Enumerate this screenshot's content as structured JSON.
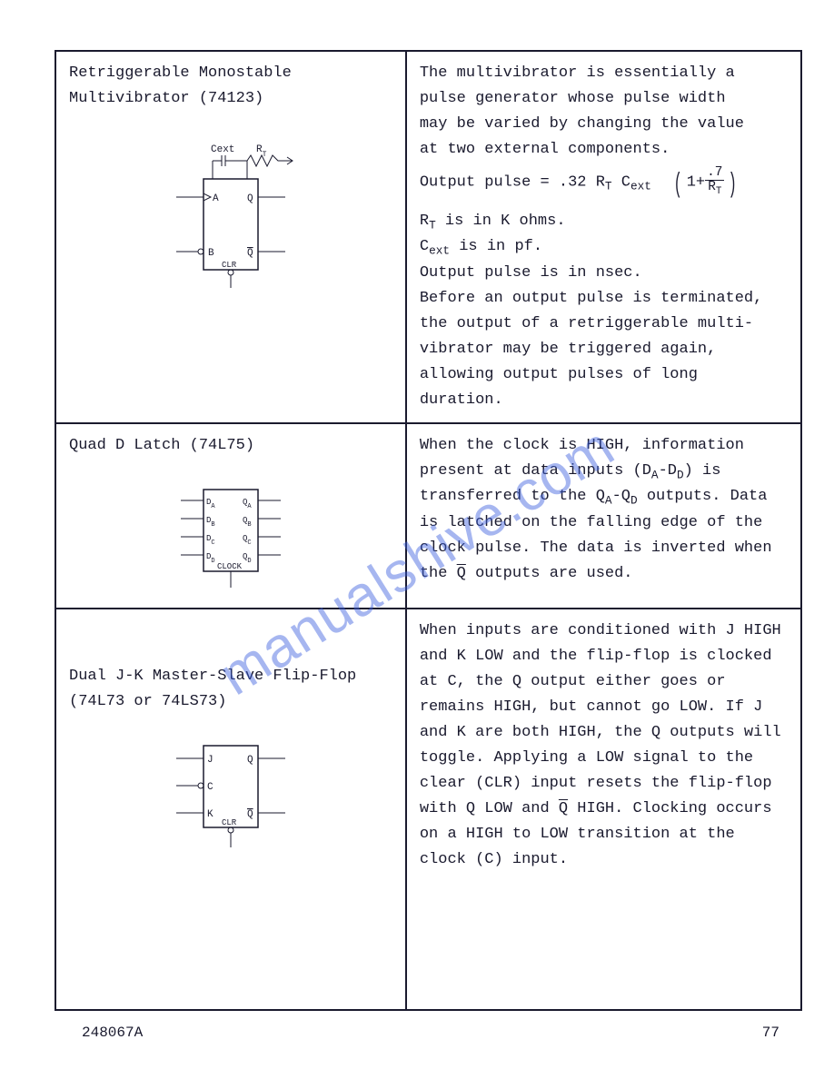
{
  "page": {
    "document_number": "248067A",
    "page_number": "77",
    "watermark_text": "manualshive.com",
    "border_color": "#1a1a2e",
    "text_color": "#1a1a2e",
    "background_color": "#ffffff",
    "font_family": "Courier New"
  },
  "rows": [
    {
      "title": "Retriggerable Monostable Multivibrator (74123)",
      "diagram": {
        "type": "ic_block",
        "labels": {
          "top_left": "Cext",
          "top_right": "R_T",
          "in_a": "A",
          "in_b": "B",
          "out_q": "Q",
          "out_qbar": "Q̄",
          "clr": "CLR"
        }
      },
      "description": {
        "lines": [
          "The multivibrator is essentially a",
          "pulse generator whose pulse width",
          "may be varied by changing the value",
          "at two external components."
        ],
        "formula": {
          "prefix": "Output pulse = .32 R",
          "sub1": "T",
          "mid": " C",
          "sub2": "ext",
          "frac_num": ".7",
          "frac_den_prefix": "R",
          "frac_den_sub": "T"
        },
        "lines2": [
          {
            "text": "R",
            "sub": "T",
            "rest": " is in K ohms."
          },
          {
            "text": "C",
            "sub": "ext",
            "rest": " is in pf."
          }
        ],
        "lines3": [
          "Output pulse is in nsec.",
          "Before an output pulse is terminated,",
          "the output of a retriggerable multi-",
          "vibrator may be triggered again,",
          "allowing output pulses of long",
          "duration."
        ]
      }
    },
    {
      "title": "Quad D Latch (74L75)",
      "diagram": {
        "type": "ic_block",
        "labels": {
          "d": [
            "D_A",
            "D_B",
            "D_C",
            "D_D"
          ],
          "q": [
            "Q_A",
            "Q_B",
            "Q_C",
            "Q_D"
          ],
          "clock": "CLOCK"
        }
      },
      "description_html": "When the clock is HIGH, information present at data inputs (D<sub>A</sub>-D<sub>D</sub>) is transferred to the Q<sub>A</sub>-Q<sub>D</sub> outputs. Data is latched on the falling edge of the clock pulse.  The data is inverted when the <ovl>Q</ovl> outputs are used."
    },
    {
      "title": "Dual J-K Master-Slave Flip-Flop (74L73 or 74LS73)",
      "diagram": {
        "type": "ic_block",
        "labels": {
          "j": "J",
          "c": "C",
          "k": "K",
          "q": "Q",
          "qbar": "Q̄",
          "clr": "CLR"
        }
      },
      "description_html": "When inputs are conditioned with J HIGH and K LOW and the flip-flop is clocked at C, the Q output either goes or remains HIGH, but cannot go LOW.  If J and K are both HIGH, the Q outputs will toggle. Applying a LOW signal to the clear (CLR) input resets the flip-flop with Q LOW and <ovl>Q</ovl> HIGH.  Clocking occurs on a HIGH to LOW transition at the clock (C) input."
    }
  ]
}
